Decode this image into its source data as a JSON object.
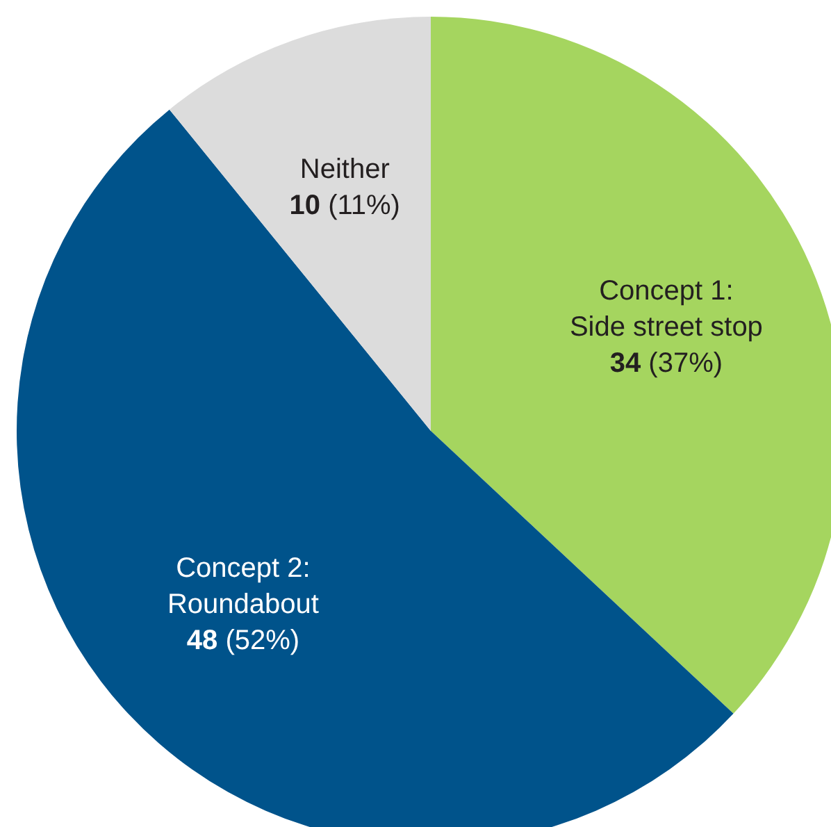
{
  "chart_data": {
    "type": "pie",
    "categories": [
      "Concept 1:\nSide street stop",
      "Concept 2:\nRoundabout",
      "Neither"
    ],
    "values": [
      34,
      48,
      10
    ],
    "colors": [
      "#a5d55f",
      "#00538b",
      "#dcdcdc"
    ],
    "value_labels": [
      "34 (37%)",
      "48 (52%)",
      "10 (11%)"
    ]
  }
}
